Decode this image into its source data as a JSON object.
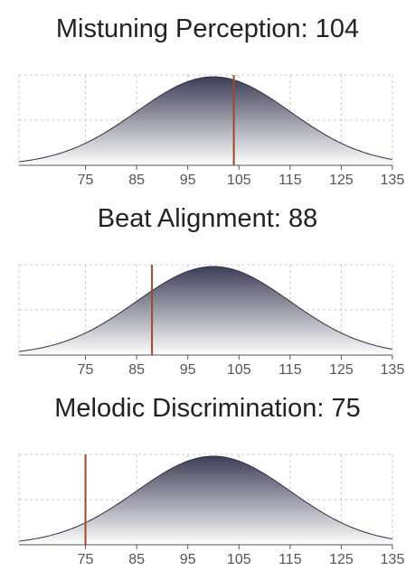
{
  "chart_data": [
    {
      "type": "area",
      "title": "Mistuning Perception: 104",
      "score": 104,
      "distribution": "normal",
      "mean": 100,
      "sd": 15,
      "xlim": [
        62,
        135
      ],
      "x_ticks": [
        "75",
        "85",
        "95",
        "105",
        "115",
        "125",
        "135"
      ],
      "grid": true,
      "score_line_color": "#a0482a",
      "curve_gradient": [
        "#3c3e56",
        "#ffffff"
      ]
    },
    {
      "type": "area",
      "title": "Beat Alignment: 88",
      "score": 88,
      "distribution": "normal",
      "mean": 100,
      "sd": 15,
      "xlim": [
        62,
        135
      ],
      "x_ticks": [
        "75",
        "85",
        "95",
        "105",
        "115",
        "125",
        "135"
      ],
      "grid": true,
      "score_line_color": "#a0482a",
      "curve_gradient": [
        "#3c3e56",
        "#ffffff"
      ]
    },
    {
      "type": "area",
      "title": "Melodic Discrimination: 75",
      "score": 75,
      "distribution": "normal",
      "mean": 100,
      "sd": 15,
      "xlim": [
        62,
        135
      ],
      "x_ticks": [
        "75",
        "85",
        "95",
        "105",
        "115",
        "125",
        "135"
      ],
      "grid": true,
      "score_line_color": "#a0482a",
      "curve_gradient": [
        "#3c3e56",
        "#ffffff"
      ]
    }
  ]
}
